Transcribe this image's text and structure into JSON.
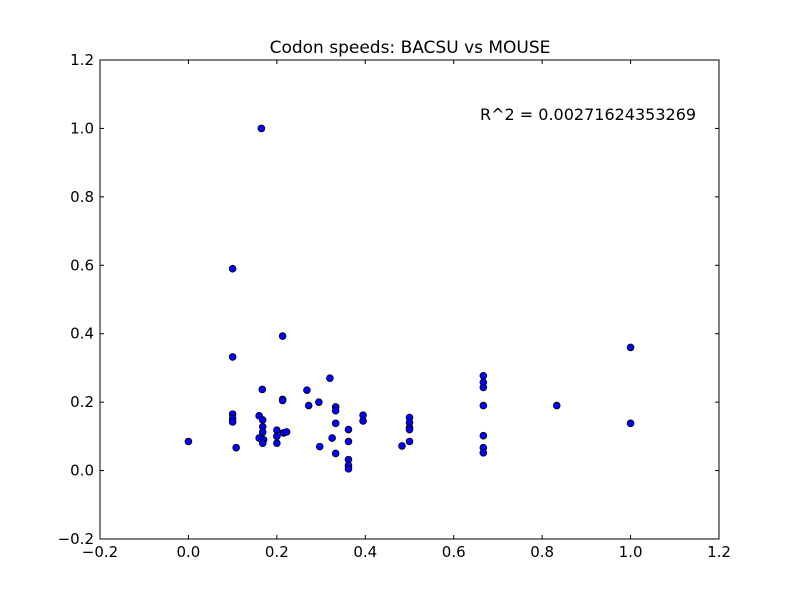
{
  "chart_data": {
    "type": "scatter",
    "title": "Codon speeds: BACSU vs MOUSE",
    "annotation": "R^2 = 0.00271624353269",
    "xlabel": "",
    "ylabel": "",
    "xlim": [
      -0.2,
      1.2
    ],
    "ylim": [
      -0.2,
      1.2
    ],
    "xticks": [
      -0.2,
      0.0,
      0.2,
      0.4,
      0.6,
      0.8,
      1.0,
      1.2
    ],
    "yticks": [
      -0.2,
      0.0,
      0.2,
      0.4,
      0.6,
      0.8,
      1.0,
      1.2
    ],
    "xtick_labels": [
      "−0.2",
      "0.0",
      "0.2",
      "0.4",
      "0.6",
      "0.8",
      "1.0",
      "1.2"
    ],
    "ytick_labels": [
      "−0.2",
      "0.0",
      "0.2",
      "0.4",
      "0.6",
      "0.8",
      "1.0",
      "1.2"
    ],
    "grid": false,
    "marker_color": "#0000ff",
    "points": [
      [
        0.0,
        0.085
      ],
      [
        0.1,
        0.59
      ],
      [
        0.1,
        0.332
      ],
      [
        0.1,
        0.165
      ],
      [
        0.1,
        0.152
      ],
      [
        0.1,
        0.142
      ],
      [
        0.108,
        0.067
      ],
      [
        0.165,
        1.0
      ],
      [
        0.167,
        0.237
      ],
      [
        0.16,
        0.16
      ],
      [
        0.168,
        0.148
      ],
      [
        0.168,
        0.128
      ],
      [
        0.168,
        0.112
      ],
      [
        0.16,
        0.095
      ],
      [
        0.17,
        0.09
      ],
      [
        0.168,
        0.08
      ],
      [
        0.2,
        0.118
      ],
      [
        0.2,
        0.1
      ],
      [
        0.2,
        0.08
      ],
      [
        0.213,
        0.393
      ],
      [
        0.213,
        0.208
      ],
      [
        0.213,
        0.205
      ],
      [
        0.215,
        0.11
      ],
      [
        0.222,
        0.113
      ],
      [
        0.268,
        0.235
      ],
      [
        0.272,
        0.19
      ],
      [
        0.295,
        0.2
      ],
      [
        0.297,
        0.07
      ],
      [
        0.32,
        0.27
      ],
      [
        0.325,
        0.095
      ],
      [
        0.333,
        0.186
      ],
      [
        0.333,
        0.175
      ],
      [
        0.333,
        0.138
      ],
      [
        0.333,
        0.05
      ],
      [
        0.362,
        0.12
      ],
      [
        0.362,
        0.085
      ],
      [
        0.362,
        0.032
      ],
      [
        0.362,
        0.015
      ],
      [
        0.362,
        0.005
      ],
      [
        0.395,
        0.162
      ],
      [
        0.395,
        0.145
      ],
      [
        0.483,
        0.072
      ],
      [
        0.5,
        0.155
      ],
      [
        0.5,
        0.14
      ],
      [
        0.5,
        0.125
      ],
      [
        0.5,
        0.12
      ],
      [
        0.5,
        0.085
      ],
      [
        0.667,
        0.277
      ],
      [
        0.667,
        0.258
      ],
      [
        0.667,
        0.243
      ],
      [
        0.667,
        0.19
      ],
      [
        0.667,
        0.102
      ],
      [
        0.667,
        0.067
      ],
      [
        0.667,
        0.052
      ],
      [
        0.833,
        0.19
      ],
      [
        1.0,
        0.36
      ],
      [
        1.0,
        0.138
      ]
    ]
  }
}
